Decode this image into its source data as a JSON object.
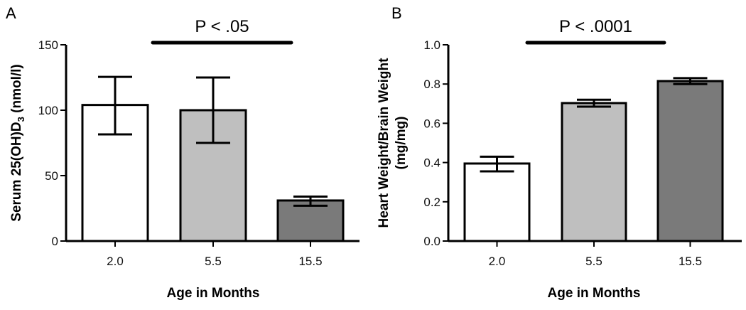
{
  "chart_data": [
    {
      "type": "bar",
      "panel_label": "A",
      "categories": [
        "2.0",
        "5.5",
        "15.5"
      ],
      "values": [
        104,
        100,
        31
      ],
      "error_high": [
        125.5,
        125,
        34
      ],
      "error_low": [
        81.5,
        75,
        27
      ],
      "colors": [
        "#ffffff",
        "#bfbfbf",
        "#7a7a7a"
      ],
      "xlabel": "Age in Months",
      "ylabel": {
        "main": "Serum 25(OH)D",
        "sub": "3",
        "unit": " (nmol/l)"
      },
      "ylim": [
        0,
        150
      ],
      "yticks": [
        0,
        50,
        100,
        150
      ],
      "ytick_labels": [
        "0",
        "50",
        "100",
        "150"
      ],
      "significance": {
        "label": "P < .05",
        "from": "2.0",
        "to": "15.5"
      },
      "grid": false
    },
    {
      "type": "bar",
      "panel_label": "B",
      "categories": [
        "2.0",
        "5.5",
        "15.5"
      ],
      "values": [
        0.395,
        0.703,
        0.815
      ],
      "error_high": [
        0.43,
        0.72,
        0.83
      ],
      "error_low": [
        0.355,
        0.685,
        0.8
      ],
      "colors": [
        "#ffffff",
        "#bfbfbf",
        "#7a7a7a"
      ],
      "xlabel": "Age in Months",
      "ylabel": {
        "line1": "Heart Weight/Brain Weight",
        "line2": "(mg/mg)"
      },
      "ylim": [
        0,
        1.0
      ],
      "yticks": [
        0,
        0.2,
        0.4,
        0.6,
        0.8,
        1.0
      ],
      "ytick_labels": [
        "0.0",
        "0.2",
        "0.4",
        "0.6",
        "0.8",
        "1.0"
      ],
      "significance": {
        "label": "P < .0001",
        "from": "2.0",
        "to": "15.5"
      },
      "grid": false
    }
  ]
}
